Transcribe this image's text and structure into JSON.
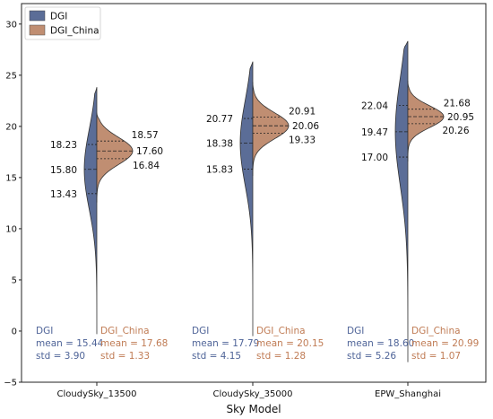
{
  "chart_data": {
    "type": "violin",
    "xlabel": "Sky Model",
    "ylabel": "",
    "ylim": [
      -5,
      32
    ],
    "yticks": [
      -5,
      0,
      5,
      10,
      15,
      20,
      25,
      30
    ],
    "grid": false,
    "legend_position": "top-left",
    "legend": [
      {
        "name": "DGI",
        "color": "#5b6d97"
      },
      {
        "name": "DGI_China",
        "color": "#c08e72"
      }
    ],
    "stat_colors": {
      "DGI": "#4f6498",
      "DGI_China": "#c07c55"
    },
    "categories": [
      "CloudySky_13500",
      "CloudySky_35000",
      "EPW_Shanghai"
    ],
    "groups": [
      {
        "category": "CloudySky_13500",
        "DGI": {
          "mean": 15.44,
          "std": 3.9,
          "min": -0.3,
          "max": 23.8,
          "q1": 13.43,
          "median": 15.8,
          "q3": 18.23,
          "q1_label": "13.43",
          "median_label": "15.80",
          "q3_label": "18.23",
          "stats": {
            "name": "DGI",
            "mean": "mean = 15.44",
            "std": "std = 3.90"
          }
        },
        "DGI_China": {
          "mean": 17.68,
          "std": 1.33,
          "min": 12.6,
          "max": 21.3,
          "q1": 16.84,
          "median": 17.6,
          "q3": 18.57,
          "q1_label": "16.84",
          "median_label": "17.60",
          "q3_label": "18.57",
          "stats": {
            "name": "DGI_China",
            "mean": "mean = 17.68",
            "std": "std = 1.33"
          }
        }
      },
      {
        "category": "CloudySky_35000",
        "DGI": {
          "mean": 17.79,
          "std": 4.15,
          "min": -0.5,
          "max": 26.3,
          "q1": 15.83,
          "median": 18.38,
          "q3": 20.77,
          "q1_label": "15.83",
          "median_label": "18.38",
          "q3_label": "20.77",
          "stats": {
            "name": "DGI",
            "mean": "mean = 17.79",
            "std": "std = 4.15"
          }
        },
        "DGI_China": {
          "mean": 20.15,
          "std": 1.28,
          "min": 15.2,
          "max": 24.3,
          "q1": 19.33,
          "median": 20.06,
          "q3": 20.91,
          "q1_label": "19.33",
          "median_label": "20.06",
          "q3_label": "20.91",
          "stats": {
            "name": "DGI_China",
            "mean": "mean = 20.15",
            "std": "std = 1.28"
          }
        }
      },
      {
        "category": "EPW_Shanghai",
        "DGI": {
          "mean": 18.6,
          "std": 5.26,
          "min": -3.0,
          "max": 28.3,
          "q1": 17.0,
          "median": 19.47,
          "q3": 22.04,
          "q1_label": "17.00",
          "median_label": "19.47",
          "q3_label": "22.04",
          "stats": {
            "name": "DGI",
            "mean": "mean = 18.60",
            "std": "std = 5.26"
          }
        },
        "DGI_China": {
          "mean": 20.99,
          "std": 1.07,
          "min": 16.6,
          "max": 24.4,
          "q1": 20.26,
          "median": 20.95,
          "q3": 21.68,
          "q1_label": "20.26",
          "median_label": "20.95",
          "q3_label": "21.68",
          "stats": {
            "name": "DGI_China",
            "mean": "mean = 20.99",
            "std": "std = 1.07"
          }
        }
      }
    ]
  }
}
